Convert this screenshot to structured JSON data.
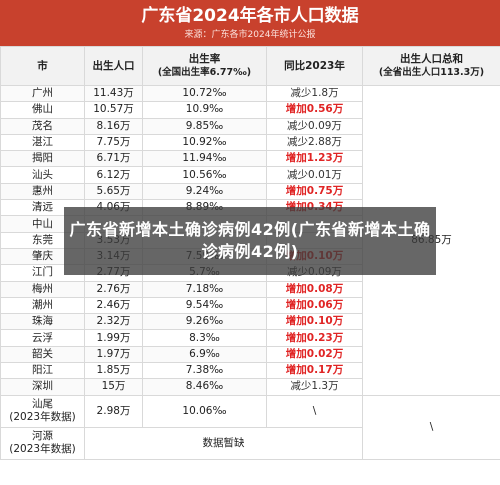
{
  "title": "广东省2024年各市人口数据",
  "subtitle": "来源：广东各市2024年统计公报",
  "headers": {
    "city": "市",
    "births": "出生人口",
    "birth_rate_l1": "出生率",
    "birth_rate_l2": "(全国出生率6.77‰)",
    "yoy": "同比2023年",
    "total_l1": "出生人口总和",
    "total_l2": "(全省出生人口113.3万)"
  },
  "rows": [
    {
      "city": "广州",
      "births": "11.43万",
      "rate": "10.72‰",
      "change": "减少1.8万",
      "dir": "dec"
    },
    {
      "city": "佛山",
      "births": "10.57万",
      "rate": "10.9‰",
      "change": "增加0.56万",
      "dir": "inc"
    },
    {
      "city": "茂名",
      "births": "8.16万",
      "rate": "9.85‰",
      "change": "减少0.09万",
      "dir": "dec"
    },
    {
      "city": "湛江",
      "births": "7.75万",
      "rate": "10.92‰",
      "change": "减少2.88万",
      "dir": "dec"
    },
    {
      "city": "揭阳",
      "births": "6.71万",
      "rate": "11.94‰",
      "change": "增加1.23万",
      "dir": "inc"
    },
    {
      "city": "汕头",
      "births": "6.12万",
      "rate": "10.56‰",
      "change": "减少0.01万",
      "dir": "dec"
    },
    {
      "city": "惠州",
      "births": "5.65万",
      "rate": "9.24‰",
      "change": "增加0.75万",
      "dir": "inc"
    },
    {
      "city": "清远",
      "births": "4.06万",
      "rate": "8.89‰",
      "change": "增加0.34万",
      "dir": "inc"
    },
    {
      "city": "中山",
      "births": "",
      "rate": "",
      "change": "",
      "dir": "dec"
    },
    {
      "city": "东莞",
      "births": "3.53万",
      "rate": "",
      "change": "",
      "dir": "dec"
    },
    {
      "city": "肇庆",
      "births": "3.14万",
      "rate": "7.59‰",
      "change": "增加0.10万",
      "dir": "inc"
    },
    {
      "city": "江门",
      "births": "2.77万",
      "rate": "5.7‰",
      "change": "减少0.09万",
      "dir": "dec"
    },
    {
      "city": "梅州",
      "births": "2.76万",
      "rate": "7.18‰",
      "change": "增加0.08万",
      "dir": "inc"
    },
    {
      "city": "潮州",
      "births": "2.46万",
      "rate": "9.54‰",
      "change": "增加0.06万",
      "dir": "inc"
    },
    {
      "city": "珠海",
      "births": "2.32万",
      "rate": "9.26‰",
      "change": "增加0.10万",
      "dir": "inc"
    },
    {
      "city": "云浮",
      "births": "1.99万",
      "rate": "8.3‰",
      "change": "增加0.23万",
      "dir": "inc"
    },
    {
      "city": "韶关",
      "births": "1.97万",
      "rate": "6.9‰",
      "change": "增加0.02万",
      "dir": "inc"
    },
    {
      "city": "阳江",
      "births": "1.85万",
      "rate": "7.38‰",
      "change": "增加0.17万",
      "dir": "inc"
    },
    {
      "city": "深圳",
      "births": "15万",
      "rate": "8.46‰",
      "change": "减少1.3万",
      "dir": "dec"
    }
  ],
  "shanwei": {
    "city_l1": "汕尾",
    "city_l2": "(2023年数据)",
    "births": "2.98万",
    "rate": "10.06‰",
    "change": "\\"
  },
  "heyuan": {
    "city_l1": "河源",
    "city_l2": "(2023年数据)",
    "merged": "数据暂缺"
  },
  "total_value": "86.85万",
  "total_backslash": "\\",
  "overlay_text": "广东省新增本土确诊病例42例(广东省新增本土确诊病例42例)",
  "colors": {
    "header_bg": "#c8412d",
    "increase": "#e02424"
  }
}
